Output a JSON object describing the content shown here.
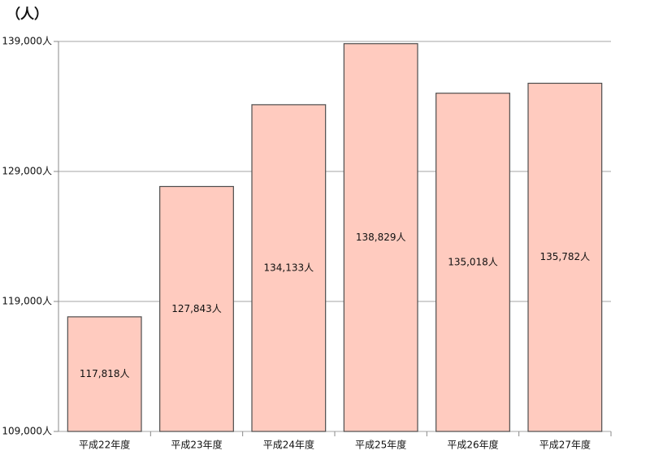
{
  "chart_data": {
    "type": "bar",
    "unit_label": "（人）",
    "categories": [
      "平成22年度",
      "平成23年度",
      "平成24年度",
      "平成25年度",
      "平成26年度",
      "平成27年度"
    ],
    "values": [
      117818,
      127843,
      134133,
      138829,
      135018,
      135782
    ],
    "value_labels": [
      "117,818人",
      "127,843人",
      "134,133人",
      "138,829人",
      "135,018人",
      "135,782人"
    ],
    "color": "#ffcbbf",
    "ylim": [
      109000,
      139000
    ],
    "yticks": [
      {
        "value": 109000,
        "label": "109,000人"
      },
      {
        "value": 119000,
        "label": "119,000人"
      },
      {
        "value": 129000,
        "label": "129,000人"
      },
      {
        "value": 139000,
        "label": "139,000人"
      }
    ],
    "grid": true
  }
}
